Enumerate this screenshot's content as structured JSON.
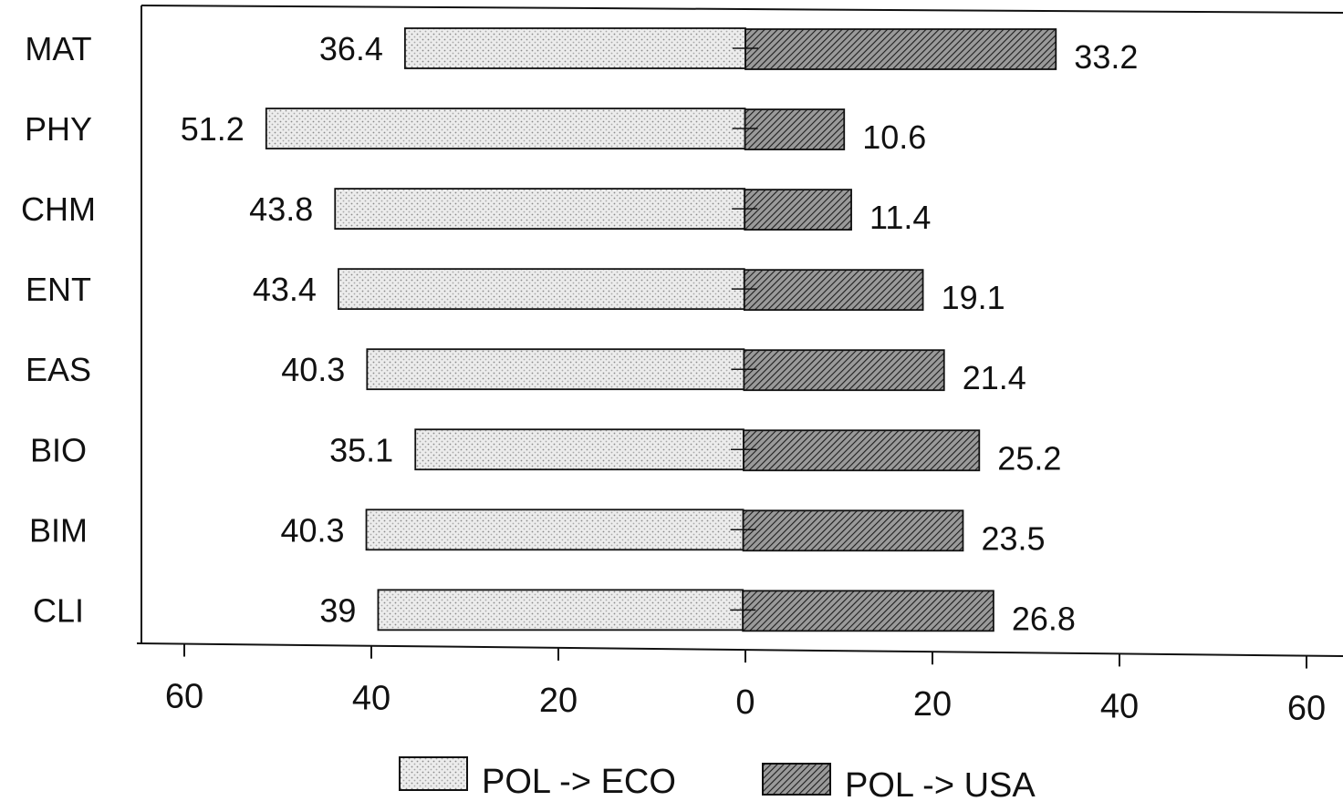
{
  "chart_data": {
    "type": "bar",
    "orientation": "horizontal-diverging",
    "title": "",
    "xlabel": "",
    "ylabel": "",
    "categories": [
      "MAT",
      "PHY",
      "CHM",
      "ENT",
      "EAS",
      "BIO",
      "BIM",
      "CLI"
    ],
    "series": [
      {
        "name": "POL -> ECO",
        "direction": "left",
        "values": [
          36.4,
          51.2,
          43.8,
          43.4,
          40.3,
          35.1,
          40.3,
          39
        ],
        "labels": [
          "36.4",
          "51.2",
          "43.8",
          "43.4",
          "40.3",
          "35.1",
          "40.3",
          "39"
        ],
        "pattern": "light-dotted",
        "color": "#e4e4e4"
      },
      {
        "name": "POL -> USA",
        "direction": "right",
        "values": [
          33.2,
          10.6,
          11.4,
          19.1,
          21.4,
          25.2,
          23.5,
          26.8
        ],
        "labels": [
          "33.2",
          "10.6",
          "11.4",
          "19.1",
          "21.4",
          "25.2",
          "23.5",
          "26.8"
        ],
        "pattern": "dark-hatched",
        "color": "#5a5a5a"
      }
    ],
    "xlim": [
      -60,
      60
    ],
    "xticks": [
      -60,
      -40,
      -20,
      0,
      20,
      40,
      60
    ],
    "xtick_labels": [
      "60",
      "40",
      "20",
      "0",
      "20",
      "40",
      "60"
    ],
    "grid": false,
    "legend_position": "bottom-center"
  }
}
